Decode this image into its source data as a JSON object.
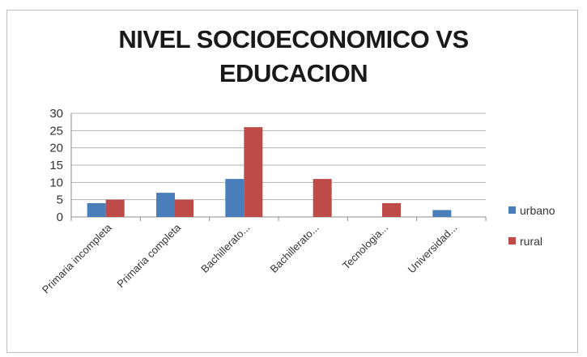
{
  "chart_data": {
    "type": "bar",
    "title": "NIVEL SOCIOECONOMICO VS\nEDUCACION",
    "categories": [
      "Primaria incompleta",
      "Primaria completa",
      "Bachillerato...",
      "Bachillerato...",
      "Tecnologia...",
      "Universidad..."
    ],
    "series": [
      {
        "name": "urbano",
        "color": "#4a7ebb",
        "values": [
          4,
          7,
          11,
          0,
          0,
          2
        ]
      },
      {
        "name": "rural",
        "color": "#be4b48",
        "values": [
          5,
          5,
          26,
          11,
          4,
          0
        ]
      }
    ],
    "ylim": [
      0,
      30
    ],
    "yticks": [
      0,
      5,
      10,
      15,
      20,
      25,
      30
    ],
    "grid": true,
    "legend": "right"
  }
}
